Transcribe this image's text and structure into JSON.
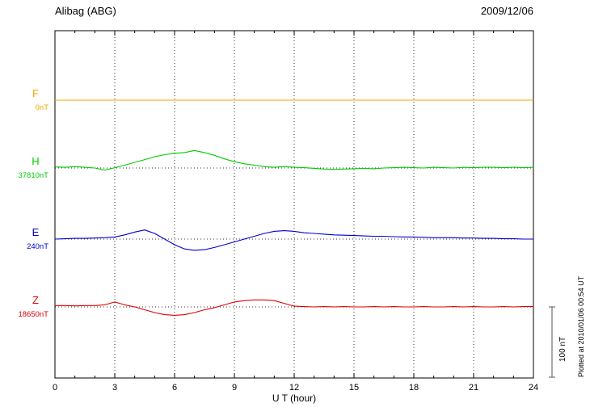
{
  "header": {
    "title": "Alibag (ABG)",
    "date": "2009/12/06"
  },
  "plotted_note": "Plotted at 2010/01/06 00:54 UT",
  "chart_data": {
    "type": "line",
    "title": "Alibag (ABG) magnetogram 2009/12/06",
    "xlabel": "U T (hour)",
    "x_range": [
      0,
      24
    ],
    "x_ticks": [
      0,
      3,
      6,
      9,
      12,
      15,
      18,
      21,
      24
    ],
    "x_minor_tick_step_hours": 1,
    "grid": "dotted vertical at 3h intervals, dotted horizontal at each channel baseline",
    "scale_bar": {
      "label": "100 nT",
      "nT": 100
    },
    "note": "values are nT offsets from each channel baseline, sampled evenly from hour 0 to 24",
    "series": [
      {
        "label": "F",
        "base_label": "0nT",
        "color": "#f0a800",
        "values": [
          0,
          0
        ]
      },
      {
        "label": "H",
        "base_label": "37810nT",
        "color": "#00cc00",
        "values": [
          1.5,
          1,
          2,
          1,
          0,
          -3,
          0.5,
          4,
          8,
          12,
          16,
          19,
          21,
          22,
          25,
          22,
          18,
          13,
          9,
          6,
          4,
          2,
          1,
          2,
          1,
          0.5,
          -0.5,
          -1.5,
          -2,
          -1.5,
          -1,
          -0.5,
          -1,
          0,
          0.5,
          1,
          0.5,
          0,
          1,
          0.5,
          0,
          1,
          0.5,
          1,
          1,
          0.5,
          1,
          0.5,
          1
        ]
      },
      {
        "label": "E",
        "base_label": "240nT",
        "color": "#0000cc",
        "values": [
          0,
          0.5,
          1,
          1,
          1.5,
          2,
          3,
          6,
          10,
          13,
          8,
          0,
          -8,
          -14,
          -16,
          -15,
          -12,
          -8,
          -4,
          0,
          4,
          8,
          11,
          12,
          11,
          9,
          8,
          7,
          6,
          5.5,
          5,
          4.5,
          4,
          4,
          3.5,
          3,
          3,
          2.5,
          2,
          2,
          2,
          1.5,
          1.5,
          1,
          1,
          0.5,
          0.5,
          0,
          0
        ]
      },
      {
        "label": "Z",
        "base_label": "18650nT",
        "color": "#dd0000",
        "values": [
          2,
          2,
          1.5,
          2,
          2,
          3,
          7,
          3,
          0,
          -4,
          -8,
          -11,
          -12,
          -11,
          -8,
          -4,
          -1,
          3,
          7,
          9,
          10,
          10,
          9,
          5,
          1,
          0.5,
          0,
          0.5,
          0,
          0.5,
          0,
          0,
          0.5,
          0,
          0.5,
          0,
          0,
          0.5,
          0,
          0,
          0.5,
          0,
          0.5,
          0,
          0,
          0.5,
          0,
          0.5,
          0.5
        ]
      }
    ]
  }
}
